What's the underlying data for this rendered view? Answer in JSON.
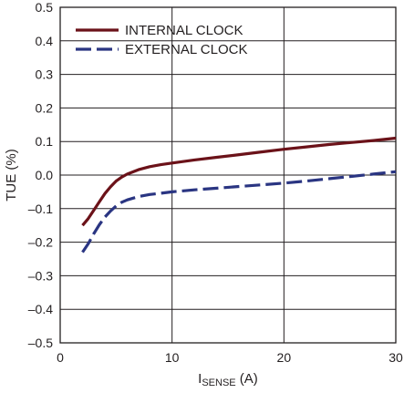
{
  "chart_data": {
    "type": "line",
    "xlabel": {
      "main": "I",
      "sub": "SENSE",
      "rest": " (A)"
    },
    "ylabel": "TUE (%)",
    "xlim": [
      0,
      30
    ],
    "ylim": [
      -0.5,
      0.5
    ],
    "x_ticks": [
      0,
      10,
      20,
      30
    ],
    "x_tick_labels": [
      "0",
      "10",
      "20",
      "30"
    ],
    "y_ticks": [
      -0.5,
      -0.4,
      -0.3,
      -0.2,
      -0.1,
      0.0,
      0.1,
      0.2,
      0.3,
      0.4,
      0.5
    ],
    "y_tick_labels": [
      "–0.5",
      "–0.4",
      "–0.3",
      "–0.2",
      "–0.1",
      "0.0",
      "0.1",
      "0.2",
      "0.3",
      "0.4",
      "0.5"
    ],
    "grid": true,
    "legend_position": "top-left",
    "series": [
      {
        "name": "INTERNAL CLOCK",
        "color": "#6b1219",
        "dash": "solid",
        "x": [
          2,
          2.5,
          3,
          3.5,
          4,
          4.5,
          5,
          5.5,
          6,
          7,
          8,
          9,
          10,
          12,
          14,
          16,
          18,
          20,
          22,
          24,
          26,
          28,
          30
        ],
        "y": [
          -0.15,
          -0.13,
          -0.105,
          -0.08,
          -0.055,
          -0.035,
          -0.018,
          -0.006,
          0.003,
          0.016,
          0.025,
          0.031,
          0.036,
          0.045,
          0.053,
          0.061,
          0.069,
          0.077,
          0.084,
          0.091,
          0.097,
          0.103,
          0.11
        ]
      },
      {
        "name": "EXTERNAL CLOCK",
        "color": "#2a3582",
        "dash": "dashed",
        "x": [
          2,
          2.5,
          3,
          3.5,
          4,
          4.5,
          5,
          5.5,
          6,
          7,
          8,
          9,
          10,
          12,
          14,
          16,
          18,
          20,
          22,
          24,
          26,
          28,
          30
        ],
        "y": [
          -0.23,
          -0.205,
          -0.175,
          -0.148,
          -0.125,
          -0.107,
          -0.092,
          -0.081,
          -0.074,
          -0.064,
          -0.058,
          -0.054,
          -0.05,
          -0.044,
          -0.039,
          -0.034,
          -0.029,
          -0.024,
          -0.018,
          -0.011,
          -0.004,
          0.003,
          0.01
        ]
      }
    ]
  }
}
